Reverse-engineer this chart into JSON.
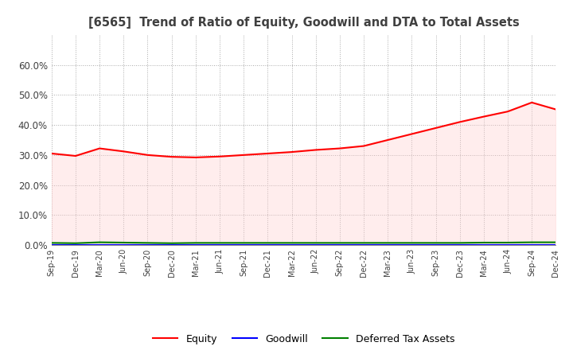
{
  "title": "[6565]  Trend of Ratio of Equity, Goodwill and DTA to Total Assets",
  "ylim": [
    0.0,
    0.7
  ],
  "yticks": [
    0.0,
    0.1,
    0.2,
    0.3,
    0.4,
    0.5,
    0.6
  ],
  "x_labels": [
    "Sep-19",
    "Dec-19",
    "Mar-20",
    "Jun-20",
    "Sep-20",
    "Dec-20",
    "Mar-21",
    "Jun-21",
    "Sep-21",
    "Dec-21",
    "Mar-22",
    "Jun-22",
    "Sep-22",
    "Dec-22",
    "Mar-23",
    "Jun-23",
    "Sep-23",
    "Dec-23",
    "Mar-24",
    "Jun-24",
    "Sep-24",
    "Dec-24"
  ],
  "equity": [
    0.305,
    0.297,
    0.322,
    0.312,
    0.3,
    0.294,
    0.292,
    0.295,
    0.3,
    0.305,
    0.31,
    0.317,
    0.322,
    0.33,
    0.35,
    0.37,
    0.39,
    0.41,
    0.428,
    0.445,
    0.475,
    0.452
  ],
  "goodwill": [
    0.0,
    0.0,
    0.0,
    0.0,
    0.0,
    0.0,
    0.0,
    0.0,
    0.0,
    0.0,
    0.0,
    0.0,
    0.0,
    0.0,
    0.0,
    0.0,
    0.0,
    0.0,
    0.0,
    0.0,
    0.0,
    0.0
  ],
  "dta": [
    0.007,
    0.006,
    0.009,
    0.008,
    0.007,
    0.006,
    0.007,
    0.007,
    0.007,
    0.007,
    0.007,
    0.007,
    0.007,
    0.007,
    0.007,
    0.007,
    0.007,
    0.007,
    0.008,
    0.008,
    0.009,
    0.009
  ],
  "equity_color": "#ff0000",
  "goodwill_color": "#0000ff",
  "dta_color": "#008000",
  "bg_color": "#ffffff",
  "grid_color": "#aaaaaa",
  "title_color": "#404040",
  "fill_equity_color": "#ffcccc",
  "fill_alpha": 0.35
}
